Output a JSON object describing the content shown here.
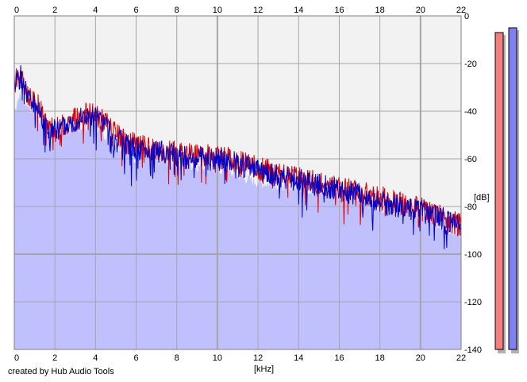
{
  "chart_data": {
    "type": "area",
    "x_unit_label": "[kHz]",
    "y_unit_label": "[dB]",
    "xlim": [
      0,
      22
    ],
    "ylim": [
      -140,
      0
    ],
    "x_ticks": [
      "0",
      "2",
      "4",
      "6",
      "8",
      "10",
      "12",
      "14",
      "16",
      "18",
      "20",
      "22"
    ],
    "y_ticks": [
      "0",
      "-20",
      "-40",
      "-60",
      "-80",
      "-100",
      "-120",
      "-140"
    ],
    "grid": true,
    "series": [
      {
        "color": "#e00000",
        "x": [
          0,
          0.25,
          0.5,
          0.75,
          1,
          1.25,
          1.5,
          1.75,
          2,
          2.5,
          3,
          3.5,
          4,
          4.5,
          5,
          5.5,
          6,
          7,
          8,
          9,
          10,
          11,
          12,
          13,
          14,
          15,
          16,
          17,
          18,
          19,
          20,
          21,
          22
        ],
        "y": [
          -28,
          -25,
          -30,
          -34,
          -36,
          -38,
          -44,
          -48,
          -47,
          -46,
          -43,
          -41,
          -42,
          -44,
          -50,
          -53,
          -54,
          -56,
          -57,
          -58,
          -59,
          -61,
          -64,
          -66,
          -68,
          -70,
          -72,
          -74,
          -76,
          -79,
          -81,
          -84,
          -88
        ]
      },
      {
        "color": "#0000cc",
        "x": [
          0,
          0.25,
          0.5,
          0.75,
          1,
          1.25,
          1.5,
          1.75,
          2,
          2.5,
          3,
          3.5,
          4,
          4.5,
          5,
          5.5,
          6,
          7,
          8,
          9,
          10,
          11,
          12,
          13,
          14,
          15,
          16,
          17,
          18,
          19,
          20,
          21,
          22
        ],
        "y": [
          -27,
          -24,
          -29,
          -35,
          -37,
          -40,
          -45,
          -49,
          -48,
          -46,
          -44,
          -42,
          -43,
          -45,
          -52,
          -54,
          -56,
          -57,
          -59,
          -60,
          -60,
          -62,
          -65,
          -67,
          -69,
          -71,
          -73,
          -75,
          -78,
          -80,
          -82,
          -85,
          -88
        ]
      }
    ],
    "filled_area": {
      "color": "#c0c0ff",
      "x": [
        0,
        0.25,
        0.5,
        1,
        1.5,
        2,
        3,
        4,
        5,
        6,
        8,
        10,
        12,
        14,
        16,
        18,
        20,
        22
      ],
      "y": [
        -40,
        -33,
        -36,
        -40,
        -48,
        -50,
        -47,
        -46,
        -54,
        -60,
        -62,
        -64,
        -70,
        -72,
        -75,
        -80,
        -84,
        -92
      ]
    },
    "level_meters": [
      {
        "color": "#f08080",
        "top_db": -7
      },
      {
        "color": "#8080f0",
        "top_db": -5
      }
    ]
  },
  "credit": "created by Hub Audio Tools",
  "colors": {
    "plot_bg": "#f2f2f2",
    "grid": "#a6a6a6",
    "axis": "#000000"
  }
}
